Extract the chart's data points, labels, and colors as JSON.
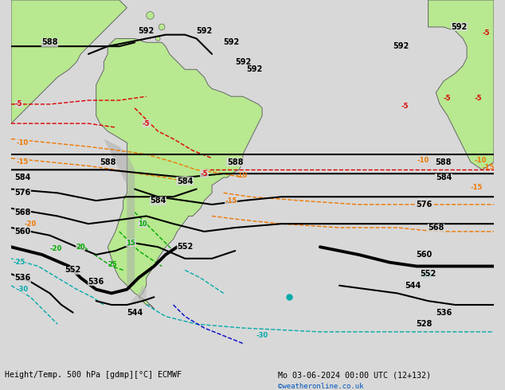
{
  "title_left": "Height/Temp. 500 hPa [gdmp][°C] ECMWF",
  "title_right": "Mo 03-06-2024 00:00 UTC (12+132)",
  "watermark": "©weatheronline.co.uk",
  "bg_color": "#d8d8d8",
  "land_color": "#b8e890",
  "ocean_color": "#d8d8d8",
  "contour_black": "#000000",
  "contour_red": "#dd0000",
  "contour_orange": "#ee7700",
  "contour_green": "#00aa00",
  "contour_cyan": "#00aaaa",
  "contour_blue": "#0000cc",
  "border_color": "#666666",
  "label_bg": "#d8d8d8",
  "figsize": [
    6.34,
    4.9
  ],
  "dpi": 100
}
